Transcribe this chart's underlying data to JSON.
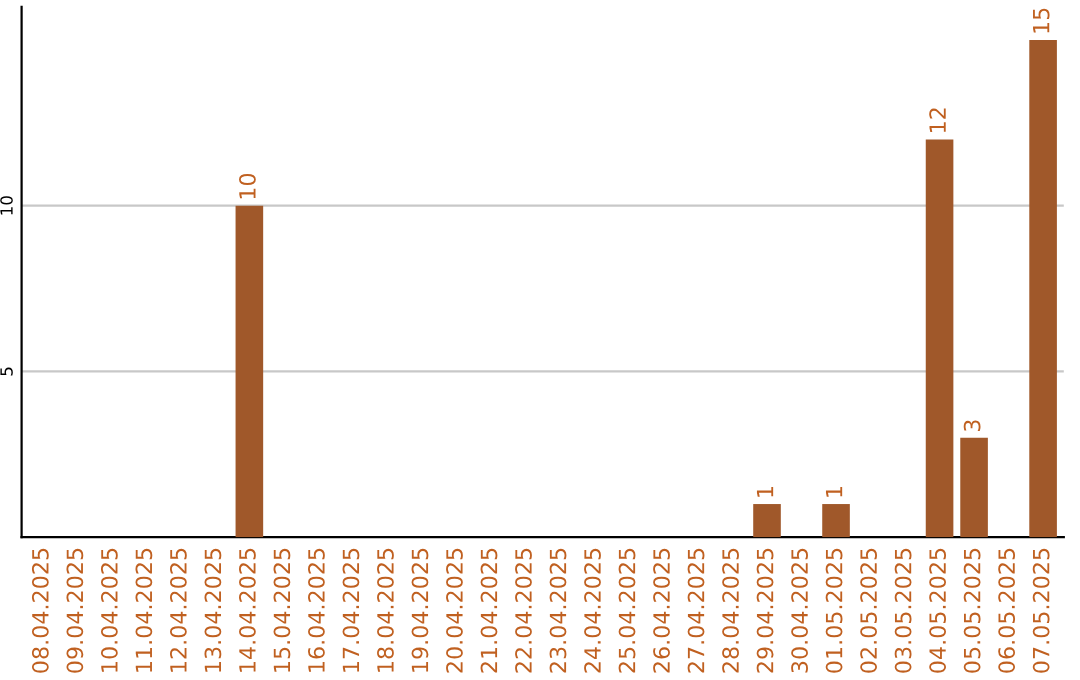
{
  "chart_data": {
    "type": "bar",
    "categories": [
      "08.04.2025",
      "09.04.2025",
      "10.04.2025",
      "11.04.2025",
      "12.04.2025",
      "13.04.2025",
      "14.04.2025",
      "15.04.2025",
      "16.04.2025",
      "17.04.2025",
      "18.04.2025",
      "19.04.2025",
      "20.04.2025",
      "21.04.2025",
      "22.04.2025",
      "23.04.2025",
      "24.04.2025",
      "25.04.2025",
      "26.04.2025",
      "27.04.2025",
      "28.04.2025",
      "29.04.2025",
      "30.04.2025",
      "01.05.2025",
      "02.05.2025",
      "03.05.2025",
      "04.05.2025",
      "05.05.2025",
      "06.05.2025",
      "07.05.2025"
    ],
    "values": [
      0,
      0,
      0,
      0,
      0,
      0,
      10,
      0,
      0,
      0,
      0,
      0,
      0,
      0,
      0,
      0,
      0,
      0,
      0,
      0,
      0,
      1,
      0,
      1,
      0,
      0,
      12,
      3,
      0,
      15
    ],
    "value_labels": [
      null,
      null,
      null,
      null,
      null,
      null,
      "10",
      null,
      null,
      null,
      null,
      null,
      null,
      null,
      null,
      null,
      null,
      null,
      null,
      null,
      null,
      "1",
      null,
      "1",
      null,
      null,
      "12",
      "3",
      null,
      "15"
    ],
    "color": "#a0582a",
    "ylim": [
      0,
      16
    ],
    "yticks": [
      5,
      10
    ],
    "grid": "y"
  }
}
